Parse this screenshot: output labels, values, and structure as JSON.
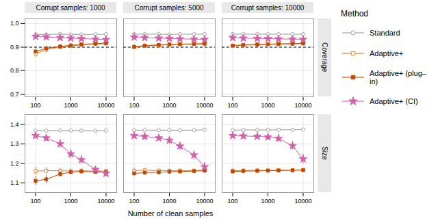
{
  "chart_data": {
    "type": "line",
    "xlabel": "Number of clean samples",
    "legend_title": "Method",
    "log": "x",
    "grid": true,
    "x": [
      100,
      200,
      500,
      1000,
      2000,
      5000,
      10000
    ],
    "xlim": [
      50,
      20000
    ],
    "xticks": [
      100,
      1000,
      10000
    ],
    "columns": [
      "Corrupt samples: 1000",
      "Corrupt samples: 5000",
      "Corrupt samples: 10000"
    ],
    "rows": [
      {
        "label": "Coverage",
        "ylim": [
          0.69,
          1.02
        ],
        "yticks": [
          0.7,
          0.8,
          0.9,
          {
            "value": 1,
            "label": "1.0"
          }
        ],
        "reference_line": {
          "value": 0.9,
          "color": "#000000",
          "line_style": "dashed"
        },
        "series": [
          {
            "name": "Standard",
            "color": "#999999",
            "marker": "circle-open",
            "values": [
              [
                0.954,
                0.954,
                0.955,
                0.954,
                0.954,
                0.954,
                0.955
              ],
              [
                0.955,
                0.955,
                0.955,
                0.954,
                0.955,
                0.955,
                0.955
              ],
              [
                0.955,
                0.955,
                0.955,
                0.955,
                0.955,
                0.955,
                0.955
              ]
            ],
            "yerr": [
              [
                0.003,
                0.003,
                0.002,
                0.002,
                0.002,
                0.002,
                0.002
              ],
              [
                0.003,
                0.003,
                0.002,
                0.002,
                0.002,
                0.002,
                0.002
              ],
              [
                0.003,
                0.003,
                0.002,
                0.002,
                0.002,
                0.002,
                0.002
              ]
            ]
          },
          {
            "name": "Adaptive+",
            "color": "#E07820",
            "marker": "square-open",
            "values": [
              [
                0.872,
                0.89,
                0.9,
                0.905,
                0.91,
                0.913,
                0.915
              ],
              [
                0.9,
                0.905,
                0.908,
                0.91,
                0.912,
                0.913,
                0.914
              ],
              [
                0.905,
                0.908,
                0.91,
                0.912,
                0.913,
                0.914,
                0.915
              ]
            ],
            "yerr": [
              [
                0.015,
                0.012,
                0.009,
                0.007,
                0.005,
                0.004,
                0.004
              ],
              [
                0.007,
                0.006,
                0.005,
                0.004,
                0.004,
                0.003,
                0.003
              ],
              [
                0.006,
                0.005,
                0.004,
                0.004,
                0.003,
                0.003,
                0.003
              ]
            ]
          },
          {
            "name": "Adaptive+ (plug–in)",
            "color": "#C04800",
            "marker": "square",
            "values": [
              [
                0.882,
                0.895,
                0.903,
                0.908,
                0.912,
                0.915,
                0.917
              ],
              [
                0.902,
                0.907,
                0.91,
                0.912,
                0.913,
                0.914,
                0.915
              ],
              [
                0.907,
                0.91,
                0.912,
                0.913,
                0.914,
                0.915,
                0.916
              ]
            ],
            "yerr": [
              [
                0.012,
                0.01,
                0.008,
                0.006,
                0.005,
                0.004,
                0.004
              ],
              [
                0.007,
                0.006,
                0.005,
                0.004,
                0.004,
                0.003,
                0.003
              ],
              [
                0.006,
                0.005,
                0.004,
                0.004,
                0.003,
                0.003,
                0.003
              ]
            ]
          },
          {
            "name": "Adaptive+ (CI)",
            "color": "#D060A8",
            "marker": "star",
            "values": [
              [
                0.945,
                0.943,
                0.94,
                0.938,
                0.936,
                0.934,
                0.932
              ],
              [
                0.942,
                0.94,
                0.938,
                0.937,
                0.935,
                0.934,
                0.933
              ],
              [
                0.94,
                0.938,
                0.937,
                0.936,
                0.935,
                0.934,
                0.933
              ]
            ],
            "yerr": [
              [
                0.005,
                0.004,
                0.004,
                0.003,
                0.003,
                0.003,
                0.003
              ],
              [
                0.004,
                0.004,
                0.003,
                0.003,
                0.003,
                0.002,
                0.002
              ],
              [
                0.004,
                0.003,
                0.003,
                0.003,
                0.002,
                0.002,
                0.002
              ]
            ]
          }
        ]
      },
      {
        "label": "Size",
        "ylim": [
          1.05,
          1.45
        ],
        "yticks": [
          1.1,
          1.2,
          1.3,
          1.4
        ],
        "series": [
          {
            "name": "Standard",
            "color": "#999999",
            "marker": "circle-open",
            "values": [
              [
                1.368,
                1.368,
                1.368,
                1.368,
                1.368,
                1.367,
                1.368
              ],
              [
                1.37,
                1.37,
                1.37,
                1.37,
                1.37,
                1.37,
                1.372
              ],
              [
                1.37,
                1.371,
                1.371,
                1.371,
                1.372,
                1.372,
                1.373
              ]
            ],
            "yerr": [
              [
                0.008,
                0.007,
                0.006,
                0.005,
                0.004,
                0.003,
                0.003
              ],
              [
                0.007,
                0.006,
                0.005,
                0.004,
                0.003,
                0.003,
                0.002
              ],
              [
                0.006,
                0.005,
                0.005,
                0.004,
                0.003,
                0.002,
                0.002
              ]
            ]
          },
          {
            "name": "Adaptive+",
            "color": "#E07820",
            "marker": "square-open",
            "values": [
              [
                1.16,
                1.162,
                1.162,
                1.16,
                1.162,
                1.16,
                1.16
              ],
              [
                1.162,
                1.165,
                1.163,
                1.162,
                1.163,
                1.163,
                1.165
              ],
              [
                1.162,
                1.163,
                1.164,
                1.164,
                1.165,
                1.165,
                1.166
              ]
            ],
            "yerr": [
              [
                0.022,
                0.018,
                0.014,
                0.011,
                0.009,
                0.007,
                0.006
              ],
              [
                0.014,
                0.011,
                0.009,
                0.007,
                0.006,
                0.005,
                0.004
              ],
              [
                0.011,
                0.009,
                0.007,
                0.006,
                0.005,
                0.004,
                0.003
              ]
            ]
          },
          {
            "name": "Adaptive+ (plug–in)",
            "color": "#C04800",
            "marker": "square",
            "values": [
              [
                1.11,
                1.118,
                1.145,
                1.155,
                1.158,
                1.156,
                1.155
              ],
              [
                1.148,
                1.152,
                1.154,
                1.157,
                1.158,
                1.16,
                1.162
              ],
              [
                1.158,
                1.16,
                1.161,
                1.162,
                1.163,
                1.164,
                1.165
              ]
            ],
            "yerr": [
              [
                0.022,
                0.02,
                0.016,
                0.013,
                0.01,
                0.008,
                0.007
              ],
              [
                0.013,
                0.011,
                0.009,
                0.007,
                0.006,
                0.005,
                0.004
              ],
              [
                0.011,
                0.009,
                0.007,
                0.006,
                0.005,
                0.004,
                0.003
              ]
            ]
          },
          {
            "name": "Adaptive+ (CI)",
            "color": "#D060A8",
            "marker": "star",
            "values": [
              [
                1.342,
                1.33,
                1.3,
                1.248,
                1.218,
                1.168,
                1.148
              ],
              [
                1.342,
                1.338,
                1.33,
                1.318,
                1.288,
                1.242,
                1.182
              ],
              [
                1.342,
                1.34,
                1.338,
                1.335,
                1.328,
                1.29,
                1.222
              ]
            ],
            "yerr": [
              [
                0.02,
                0.018,
                0.022,
                0.026,
                0.023,
                0.019,
                0.016
              ],
              [
                0.018,
                0.016,
                0.016,
                0.019,
                0.023,
                0.026,
                0.021
              ],
              [
                0.015,
                0.013,
                0.013,
                0.015,
                0.019,
                0.023,
                0.026
              ]
            ]
          }
        ]
      }
    ]
  }
}
